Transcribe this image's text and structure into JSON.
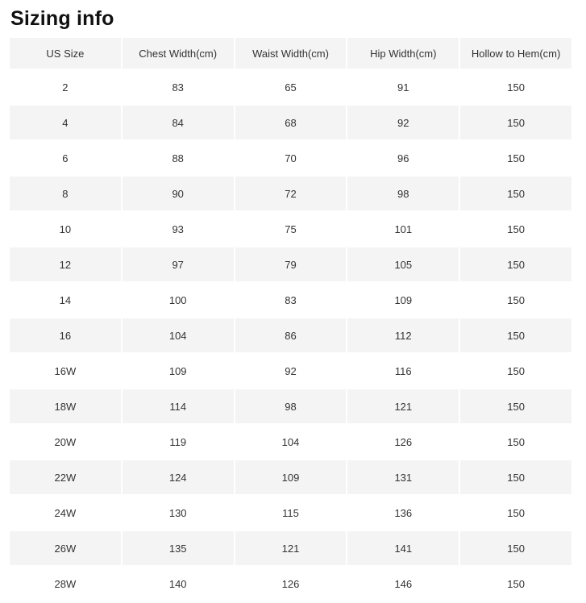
{
  "page": {
    "title": "Sizing info"
  },
  "colors": {
    "header_bg": "#f4f4f4",
    "alt_row_bg": "#f4f4f4",
    "text": "#333333",
    "title_text": "#111111",
    "background": "#ffffff"
  },
  "table": {
    "columns": [
      "US Size",
      "Chest Width(cm)",
      "Waist Width(cm)",
      "Hip Width(cm)",
      "Hollow to Hem(cm)"
    ],
    "rows": [
      [
        "2",
        "83",
        "65",
        "91",
        "150"
      ],
      [
        "4",
        "84",
        "68",
        "92",
        "150"
      ],
      [
        "6",
        "88",
        "70",
        "96",
        "150"
      ],
      [
        "8",
        "90",
        "72",
        "98",
        "150"
      ],
      [
        "10",
        "93",
        "75",
        "101",
        "150"
      ],
      [
        "12",
        "97",
        "79",
        "105",
        "150"
      ],
      [
        "14",
        "100",
        "83",
        "109",
        "150"
      ],
      [
        "16",
        "104",
        "86",
        "112",
        "150"
      ],
      [
        "16W",
        "109",
        "92",
        "116",
        "150"
      ],
      [
        "18W",
        "114",
        "98",
        "121",
        "150"
      ],
      [
        "20W",
        "119",
        "104",
        "126",
        "150"
      ],
      [
        "22W",
        "124",
        "109",
        "131",
        "150"
      ],
      [
        "24W",
        "130",
        "115",
        "136",
        "150"
      ],
      [
        "26W",
        "135",
        "121",
        "141",
        "150"
      ],
      [
        "28W",
        "140",
        "126",
        "146",
        "150"
      ]
    ]
  }
}
